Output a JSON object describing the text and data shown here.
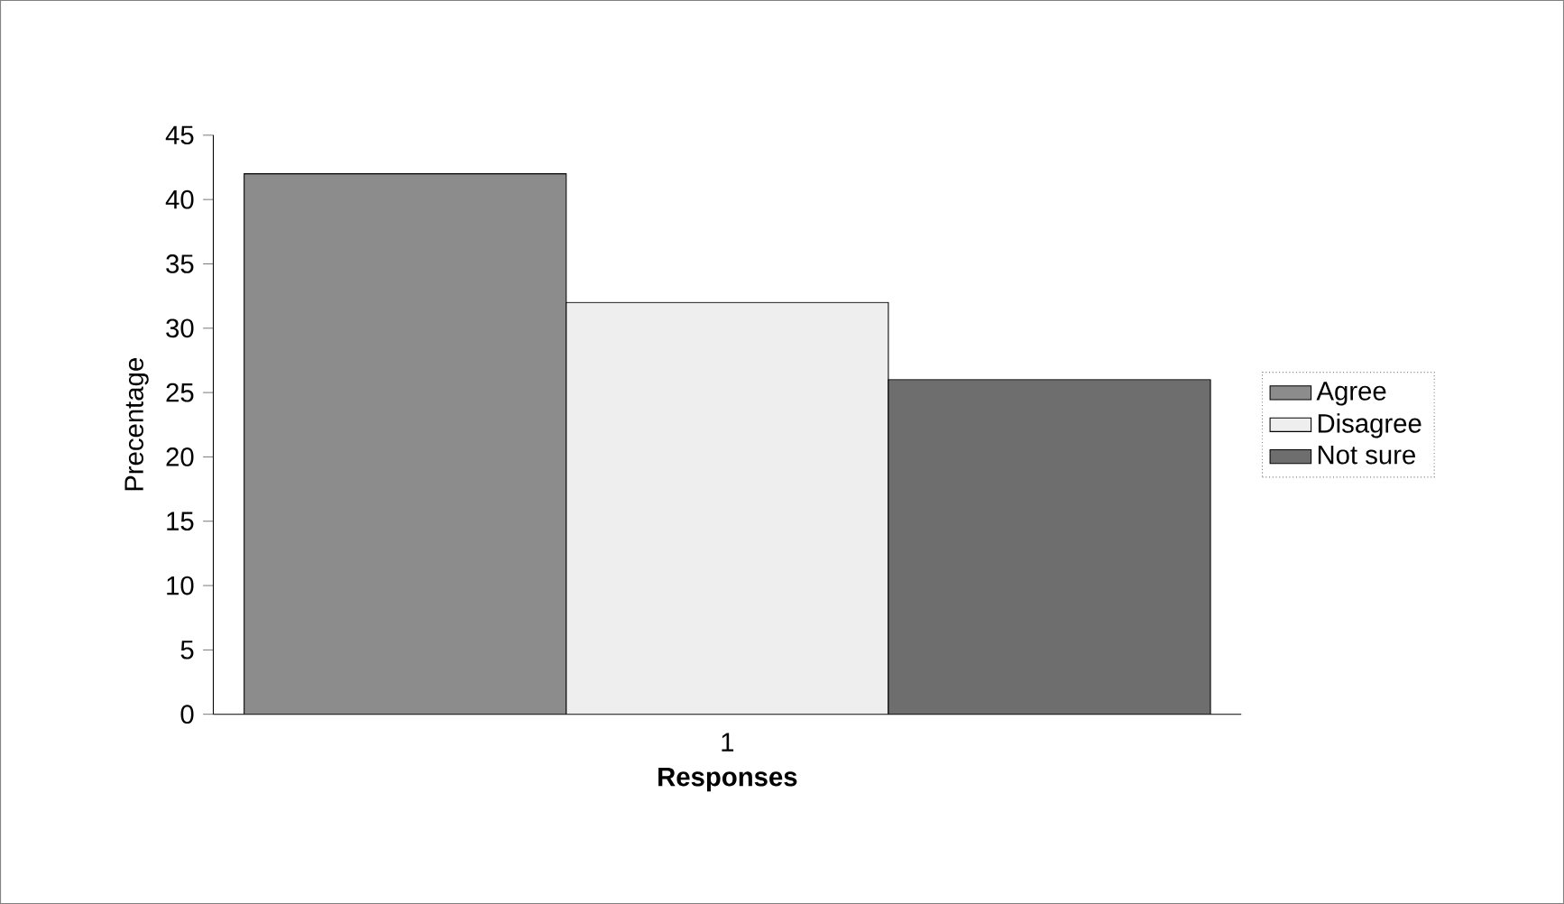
{
  "chart_data": {
    "type": "bar",
    "xlabel": "Responses",
    "ylabel": "Precentage",
    "categories": [
      "1"
    ],
    "series": [
      {
        "name": "Agree",
        "color": "#8c8c8c",
        "values": [
          42
        ]
      },
      {
        "name": "Disagree",
        "color": "#eeeeee",
        "values": [
          32
        ]
      },
      {
        "name": "Not sure",
        "color": "#6e6e6e",
        "values": [
          26
        ]
      }
    ],
    "ylim": [
      0,
      45
    ],
    "yticks": [
      0,
      5,
      10,
      15,
      20,
      25,
      30,
      35,
      40,
      45
    ],
    "legend": "right"
  }
}
